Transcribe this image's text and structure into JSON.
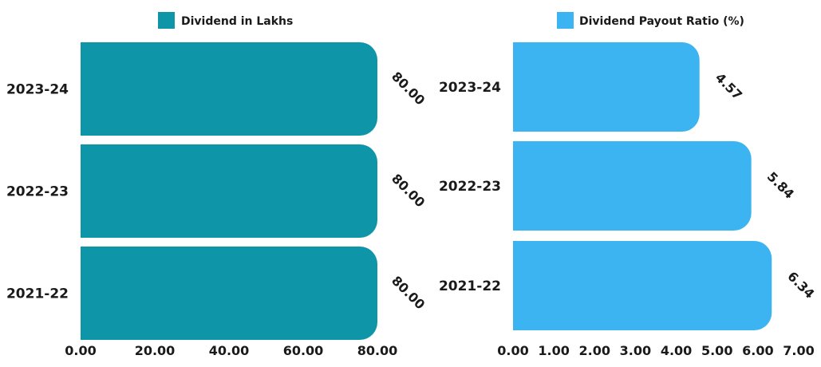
{
  "chart_data": [
    {
      "type": "bar",
      "orientation": "horizontal",
      "categories": [
        "2023-24",
        "2022-23",
        "2021-22"
      ],
      "series": [
        {
          "name": "Dividend in Lakhs",
          "values": [
            80.0,
            80.0,
            80.0
          ],
          "color": "#0e96a8"
        }
      ],
      "data_labels": [
        "80.00",
        "80.00",
        "80.00"
      ],
      "xlim": [
        0,
        80
      ],
      "x_ticks": [
        "0.00",
        "20.00",
        "40.00",
        "60.00",
        "80.00"
      ],
      "legend_position": "top",
      "grid": false
    },
    {
      "type": "bar",
      "orientation": "horizontal",
      "categories": [
        "2023-24",
        "2022-23",
        "2021-22"
      ],
      "series": [
        {
          "name": "Dividend Payout Ratio (%)",
          "values": [
            4.57,
            5.84,
            6.34
          ],
          "color": "#3db4f2"
        }
      ],
      "data_labels": [
        "4.57",
        "5.84",
        "6.34"
      ],
      "xlim": [
        0,
        7
      ],
      "x_ticks": [
        "0.00",
        "1.00",
        "2.00",
        "3.00",
        "4.00",
        "5.00",
        "6.00",
        "7.00"
      ],
      "legend_position": "top",
      "grid": false
    }
  ]
}
